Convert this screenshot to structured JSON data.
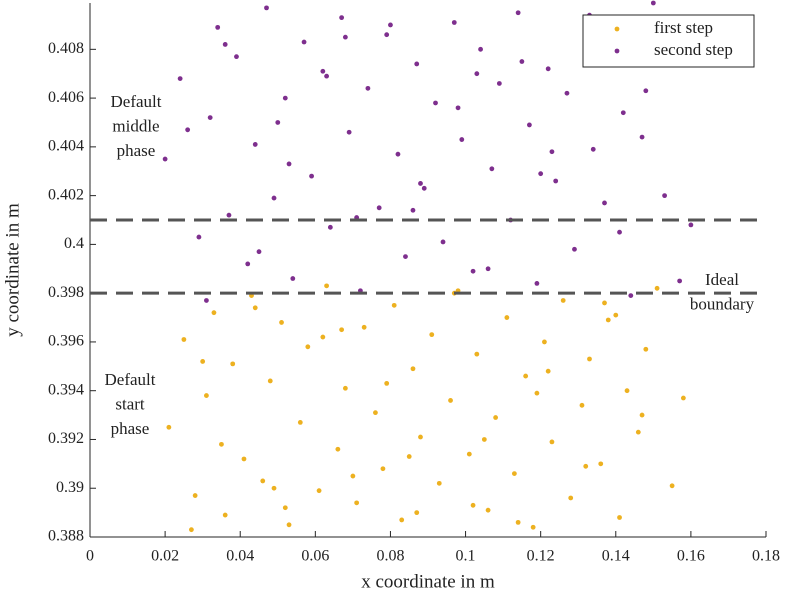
{
  "chart_data": {
    "type": "scatter",
    "xlabel": "x coordinate in m",
    "ylabel": "y coordinate in m",
    "xlim": [
      0,
      0.18
    ],
    "ylim": [
      0.388,
      0.4099
    ],
    "xticks": [
      0,
      0.02,
      0.04,
      0.06,
      0.08,
      0.1,
      0.12,
      0.14,
      0.16,
      0.18
    ],
    "yticks": [
      0.388,
      0.39,
      0.392,
      0.394,
      0.396,
      0.398,
      0.4,
      0.402,
      0.404,
      0.406,
      0.408
    ],
    "legend": "upper right",
    "hlines": [
      0.401,
      0.398
    ],
    "annotations": [
      [
        "Default",
        "middle",
        "phase"
      ],
      [
        "Default",
        "start",
        "phase"
      ],
      [
        "Ideal",
        "boundary"
      ]
    ],
    "series": [
      {
        "name": "first step",
        "color": "#EDB120",
        "x": [
          0.021,
          0.025,
          0.028,
          0.031,
          0.033,
          0.036,
          0.038,
          0.041,
          0.043,
          0.046,
          0.048,
          0.051,
          0.053,
          0.056,
          0.058,
          0.061,
          0.063,
          0.066,
          0.068,
          0.071,
          0.073,
          0.076,
          0.078,
          0.081,
          0.083,
          0.086,
          0.088,
          0.091,
          0.093,
          0.096,
          0.098,
          0.101,
          0.103,
          0.106,
          0.108,
          0.111,
          0.113,
          0.116,
          0.118,
          0.121,
          0.123,
          0.126,
          0.128,
          0.131,
          0.133,
          0.136,
          0.138,
          0.141,
          0.143,
          0.146,
          0.148,
          0.151,
          0.155,
          0.158,
          0.027,
          0.035,
          0.044,
          0.052,
          0.062,
          0.07,
          0.079,
          0.087,
          0.097,
          0.105,
          0.114,
          0.122,
          0.132,
          0.14,
          0.147,
          0.03,
          0.049,
          0.067,
          0.085,
          0.102,
          0.119,
          0.137
        ],
        "values": [
          0.3925,
          0.3961,
          0.3897,
          0.3938,
          0.3972,
          0.3889,
          0.3951,
          0.3912,
          0.3979,
          0.3903,
          0.3944,
          0.3968,
          0.3885,
          0.3927,
          0.3958,
          0.3899,
          0.3983,
          0.3916,
          0.3941,
          0.3894,
          0.3966,
          0.3931,
          0.3908,
          0.3975,
          0.3887,
          0.3949,
          0.3921,
          0.3963,
          0.3902,
          0.3936,
          0.3981,
          0.3914,
          0.3955,
          0.3891,
          0.3929,
          0.397,
          0.3906,
          0.3946,
          0.3884,
          0.396,
          0.3919,
          0.3977,
          0.3896,
          0.3934,
          0.3953,
          0.391,
          0.3969,
          0.3888,
          0.394,
          0.3923,
          0.3957,
          0.3982,
          0.3901,
          0.3937,
          0.3883,
          0.3918,
          0.3974,
          0.3892,
          0.3962,
          0.3905,
          0.3943,
          0.389,
          0.398,
          0.392,
          0.3886,
          0.3948,
          0.3909,
          0.3971,
          0.393,
          0.3952,
          0.39,
          0.3965,
          0.3913,
          0.3893,
          0.3939,
          0.3976
        ]
      },
      {
        "name": "second step",
        "color": "#7E2F8E",
        "x": [
          0.02,
          0.024,
          0.029,
          0.032,
          0.034,
          0.037,
          0.039,
          0.042,
          0.044,
          0.047,
          0.049,
          0.052,
          0.054,
          0.057,
          0.059,
          0.062,
          0.064,
          0.067,
          0.069,
          0.072,
          0.074,
          0.077,
          0.079,
          0.082,
          0.084,
          0.087,
          0.089,
          0.092,
          0.094,
          0.097,
          0.099,
          0.102,
          0.104,
          0.107,
          0.109,
          0.112,
          0.114,
          0.117,
          0.119,
          0.122,
          0.124,
          0.127,
          0.129,
          0.132,
          0.134,
          0.137,
          0.139,
          0.142,
          0.144,
          0.147,
          0.15,
          0.153,
          0.157,
          0.16,
          0.026,
          0.036,
          0.045,
          0.053,
          0.063,
          0.071,
          0.08,
          0.088,
          0.098,
          0.106,
          0.115,
          0.123,
          0.133,
          0.141,
          0.148,
          0.031,
          0.05,
          0.068,
          0.086,
          0.103,
          0.12,
          0.138
        ],
        "values": [
          0.4035,
          0.4068,
          0.4003,
          0.4052,
          0.4089,
          0.4012,
          0.4077,
          0.3992,
          0.4041,
          0.4097,
          0.4019,
          0.406,
          0.3986,
          0.4083,
          0.4028,
          0.4071,
          0.4007,
          0.4093,
          0.4046,
          0.3981,
          0.4064,
          0.4015,
          0.4086,
          0.4037,
          0.3995,
          0.4074,
          0.4023,
          0.4058,
          0.4001,
          0.4091,
          0.4043,
          0.3989,
          0.408,
          0.4031,
          0.4066,
          0.401,
          0.4095,
          0.4049,
          0.3984,
          0.4072,
          0.4026,
          0.4062,
          0.3998,
          0.4087,
          0.4039,
          0.4017,
          0.4079,
          0.4054,
          0.3979,
          0.4044,
          0.4099,
          0.402,
          0.3985,
          0.4008,
          0.4047,
          0.4082,
          0.3997,
          0.4033,
          0.4069,
          0.4011,
          0.409,
          0.4025,
          0.4056,
          0.399,
          0.4075,
          0.4038,
          0.4094,
          0.4005,
          0.4063,
          0.3977,
          0.405,
          0.4085,
          0.4014,
          0.407,
          0.4029,
          0.4092
        ]
      }
    ]
  }
}
